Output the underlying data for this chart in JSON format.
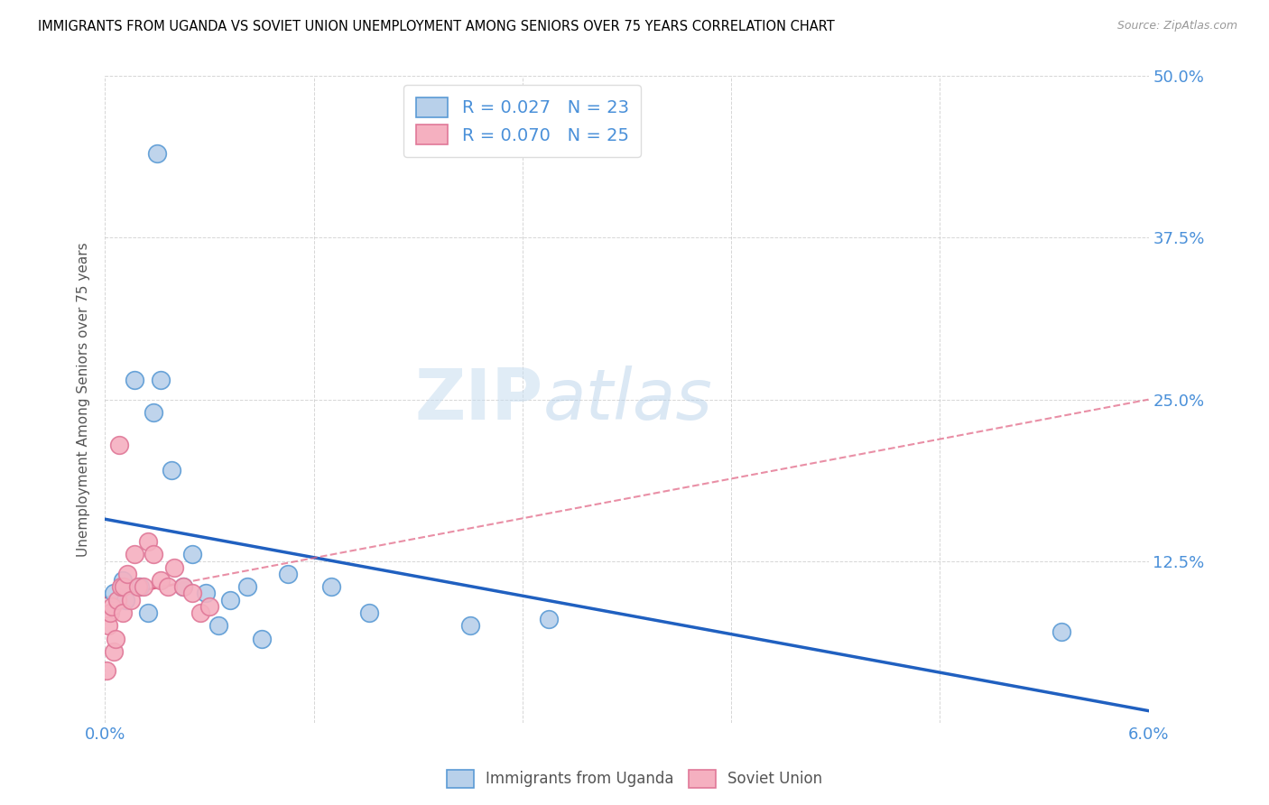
{
  "title": "IMMIGRANTS FROM UGANDA VS SOVIET UNION UNEMPLOYMENT AMONG SENIORS OVER 75 YEARS CORRELATION CHART",
  "source": "Source: ZipAtlas.com",
  "ylabel_label": "Unemployment Among Seniors over 75 years",
  "x_min": 0.0,
  "x_max": 6.0,
  "y_min": 0.0,
  "y_max": 50.0,
  "x_tick_positions": [
    0.0,
    1.2,
    2.4,
    3.6,
    4.8,
    6.0
  ],
  "x_tick_labels": [
    "0.0%",
    "",
    "",
    "",
    "",
    "6.0%"
  ],
  "y_tick_positions": [
    0.0,
    12.5,
    25.0,
    37.5,
    50.0
  ],
  "y_tick_labels": [
    "",
    "12.5%",
    "25.0%",
    "37.5%",
    "50.0%"
  ],
  "legend1_R": "0.027",
  "legend1_N": "23",
  "legend2_R": "0.070",
  "legend2_N": "25",
  "legend_label1": "Immigrants from Uganda",
  "legend_label2": "Soviet Union",
  "watermark_zip": "ZIP",
  "watermark_atlas": "atlas",
  "blue_fill": "#b8d0ea",
  "pink_fill": "#f5b0c0",
  "blue_edge": "#5b9bd5",
  "pink_edge": "#e07898",
  "blue_line": "#2060c0",
  "pink_line": "#e06080",
  "uganda_x": [
    0.05,
    0.1,
    0.12,
    0.17,
    0.2,
    0.25,
    0.28,
    0.32,
    0.38,
    0.45,
    0.5,
    0.58,
    0.65,
    0.72,
    0.82,
    0.9,
    1.05,
    1.3,
    1.52,
    2.1,
    2.55,
    0.3,
    5.5
  ],
  "uganda_y": [
    10.0,
    11.0,
    9.5,
    26.5,
    10.5,
    8.5,
    24.0,
    26.5,
    19.5,
    10.5,
    13.0,
    10.0,
    7.5,
    9.5,
    10.5,
    6.5,
    11.5,
    10.5,
    8.5,
    7.5,
    8.0,
    44.0,
    7.0
  ],
  "soviet_x": [
    0.01,
    0.02,
    0.03,
    0.04,
    0.05,
    0.06,
    0.07,
    0.08,
    0.09,
    0.1,
    0.11,
    0.13,
    0.15,
    0.17,
    0.19,
    0.22,
    0.25,
    0.28,
    0.32,
    0.36,
    0.4,
    0.45,
    0.5,
    0.55,
    0.6
  ],
  "soviet_y": [
    4.0,
    7.5,
    8.5,
    9.0,
    5.5,
    6.5,
    9.5,
    21.5,
    10.5,
    8.5,
    10.5,
    11.5,
    9.5,
    13.0,
    10.5,
    10.5,
    14.0,
    13.0,
    11.0,
    10.5,
    12.0,
    10.5,
    10.0,
    8.5,
    9.0
  ],
  "pink_solid_x_start": 0.0,
  "pink_solid_x_end": 0.45,
  "pink_dash_x_start": 0.45,
  "pink_dash_x_end": 6.0
}
